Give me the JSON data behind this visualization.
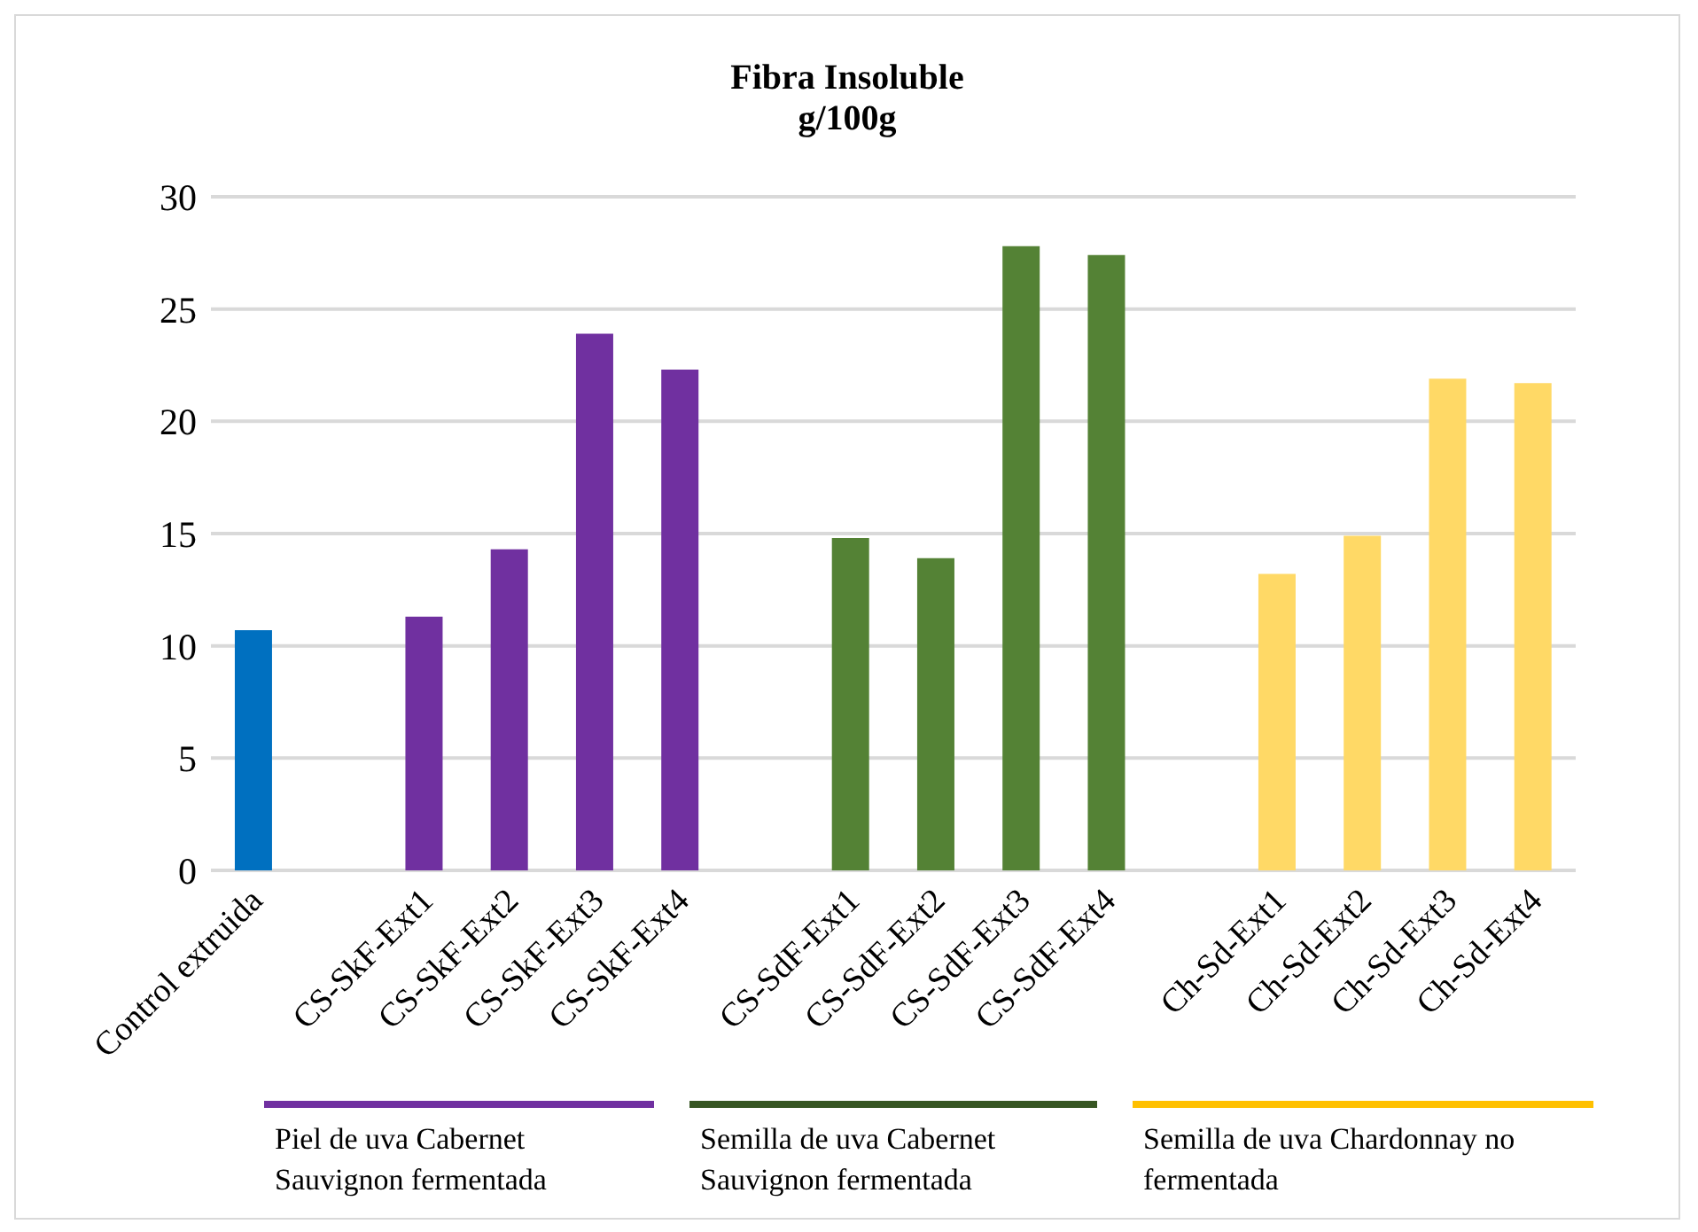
{
  "chart_data": {
    "type": "bar",
    "title": "Fibra Insoluble",
    "subtitle": "g/100g",
    "categories": [
      "Control extruida",
      null,
      "CS-SkF-Ext1",
      "CS-SkF-Ext2",
      "CS-SkF-Ext3",
      "CS-SkF-Ext4",
      null,
      "CS-SdF-Ext1",
      "CS-SdF-Ext2",
      "CS-SdF-Ext3",
      "CS-SdF-Ext4",
      null,
      "Ch-Sd-Ext1",
      "Ch-Sd-Ext2",
      "Ch-Sd-Ext3",
      "Ch-Sd-Ext4"
    ],
    "values": [
      10.7,
      null,
      11.3,
      14.3,
      23.9,
      22.3,
      null,
      14.8,
      13.9,
      27.8,
      27.4,
      null,
      13.2,
      14.9,
      21.9,
      21.7
    ],
    "colors": [
      "#0070c0",
      null,
      "#7030a0",
      "#7030a0",
      "#7030a0",
      "#7030a0",
      null,
      "#548235",
      "#548235",
      "#548235",
      "#548235",
      null,
      "#ffd966",
      "#ffd966",
      "#ffd966",
      "#ffd966"
    ],
    "ylim": [
      0,
      30
    ],
    "yticks": [
      0,
      5,
      10,
      15,
      20,
      25,
      30
    ],
    "grid": "y",
    "annotations": [
      "Piel de uva Cabernet Sauvignon fermentada",
      "Semilla de uva Cabernet Sauvignon fermentada",
      "Semilla de uva Chardonnay no fermentada"
    ]
  }
}
